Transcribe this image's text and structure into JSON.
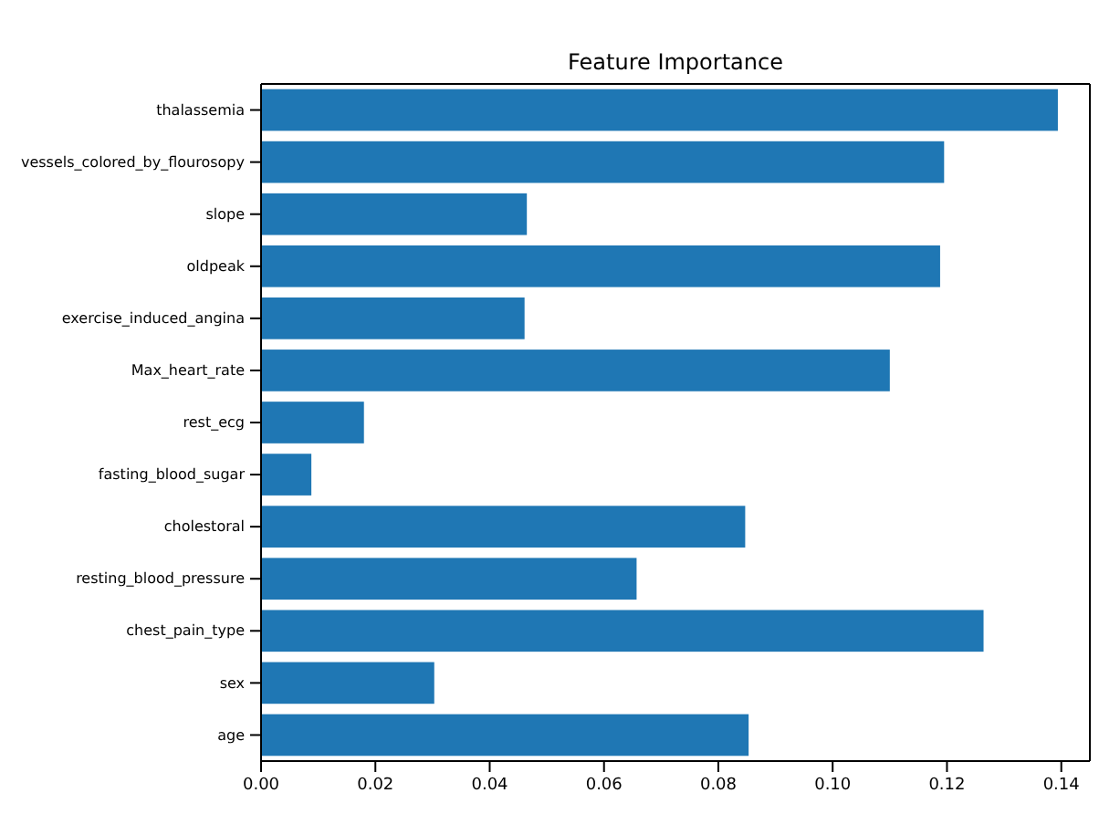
{
  "chart_data": {
    "type": "bar",
    "orientation": "horizontal",
    "title": "Feature Importance",
    "categories": [
      "thalassemia",
      "vessels_colored_by_flourosopy",
      "slope",
      "oldpeak",
      "exercise_induced_angina",
      "Max_heart_rate",
      "rest_ecg",
      "fasting_blood_sugar",
      "cholestoral",
      "resting_blood_pressure",
      "chest_pain_type",
      "sex",
      "age"
    ],
    "values": [
      0.1394,
      0.1195,
      0.0465,
      0.1188,
      0.0461,
      0.11,
      0.018,
      0.0088,
      0.0847,
      0.0657,
      0.1264,
      0.0303,
      0.0853
    ],
    "color": "#1f77b4",
    "xlim": [
      0,
      0.145
    ],
    "xticks": [
      {
        "value": 0,
        "label": "0.00"
      },
      {
        "value": 0.02,
        "label": "0.02"
      },
      {
        "value": 0.04,
        "label": "0.04"
      },
      {
        "value": 0.06,
        "label": "0.06"
      },
      {
        "value": 0.08,
        "label": "0.08"
      },
      {
        "value": 0.1,
        "label": "0.10"
      },
      {
        "value": 0.12,
        "label": "0.12"
      },
      {
        "value": 0.14,
        "label": "0.14"
      }
    ],
    "grid": false
  }
}
